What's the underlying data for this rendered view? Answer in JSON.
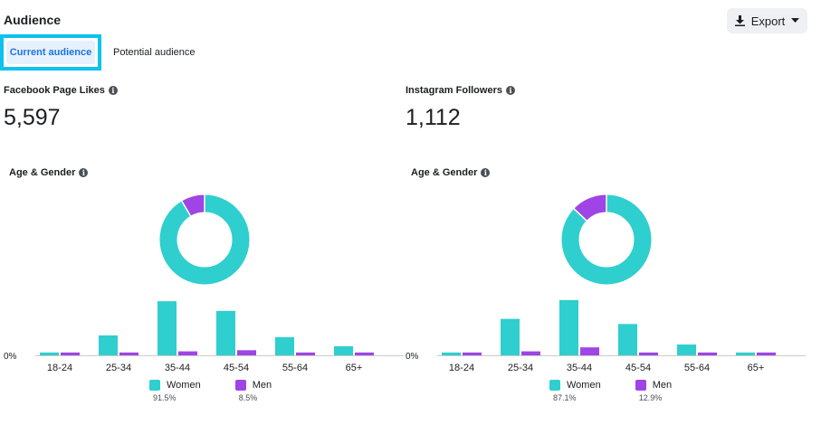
{
  "header": {
    "title": "Audience",
    "export_label": "Export"
  },
  "tabs": [
    {
      "label": "Current audience",
      "active": true
    },
    {
      "label": "Potential audience",
      "active": false
    }
  ],
  "colors": {
    "women": "#2ecfce",
    "men": "#9f45e6",
    "axis": "#cccccc",
    "text": "#1c1e21",
    "tab_highlight": "#0bc2f0"
  },
  "icons": {
    "export": "download-icon",
    "dropdown": "caret-down-icon",
    "info": "info-icon"
  },
  "panels": [
    {
      "metric_label": "Facebook Page Likes",
      "metric_value": "5,597",
      "section_label": "Age & Gender",
      "legend": [
        {
          "name": "Women",
          "pct": "91.5%"
        },
        {
          "name": "Men",
          "pct": "8.5%"
        }
      ]
    },
    {
      "metric_label": "Instagram Followers",
      "metric_value": "1,112",
      "section_label": "Age & Gender",
      "legend": [
        {
          "name": "Women",
          "pct": "87.1%"
        },
        {
          "name": "Men",
          "pct": "12.9%"
        }
      ]
    }
  ],
  "chart_data": [
    {
      "type": "bar",
      "title": "Age & Gender",
      "categories": [
        "18-24",
        "25-34",
        "35-44",
        "45-54",
        "55-64",
        "65+"
      ],
      "series": [
        {
          "name": "Women",
          "values": [
            0.5,
            3.5,
            9.5,
            7.8,
            3.2,
            1.6
          ]
        },
        {
          "name": "Men",
          "values": [
            0.5,
            0.5,
            0.7,
            0.9,
            0.5,
            0.5
          ]
        }
      ],
      "ytick_label": "0%",
      "ylim": [
        0,
        10
      ],
      "donut": [
        {
          "name": "Women",
          "value": 91.5
        },
        {
          "name": "Men",
          "value": 8.5
        }
      ]
    },
    {
      "type": "bar",
      "title": "Age & Gender",
      "categories": [
        "18-24",
        "25-34",
        "35-44",
        "45-54",
        "55-64",
        "65+"
      ],
      "series": [
        {
          "name": "Women",
          "values": [
            0.5,
            6.4,
            9.7,
            5.5,
            1.9,
            0.5
          ]
        },
        {
          "name": "Men",
          "values": [
            0.5,
            0.7,
            1.4,
            0.5,
            0.5,
            0.5
          ]
        }
      ],
      "ytick_label": "0%",
      "ylim": [
        0,
        10
      ],
      "donut": [
        {
          "name": "Women",
          "value": 87.1
        },
        {
          "name": "Men",
          "value": 12.9
        }
      ]
    }
  ]
}
